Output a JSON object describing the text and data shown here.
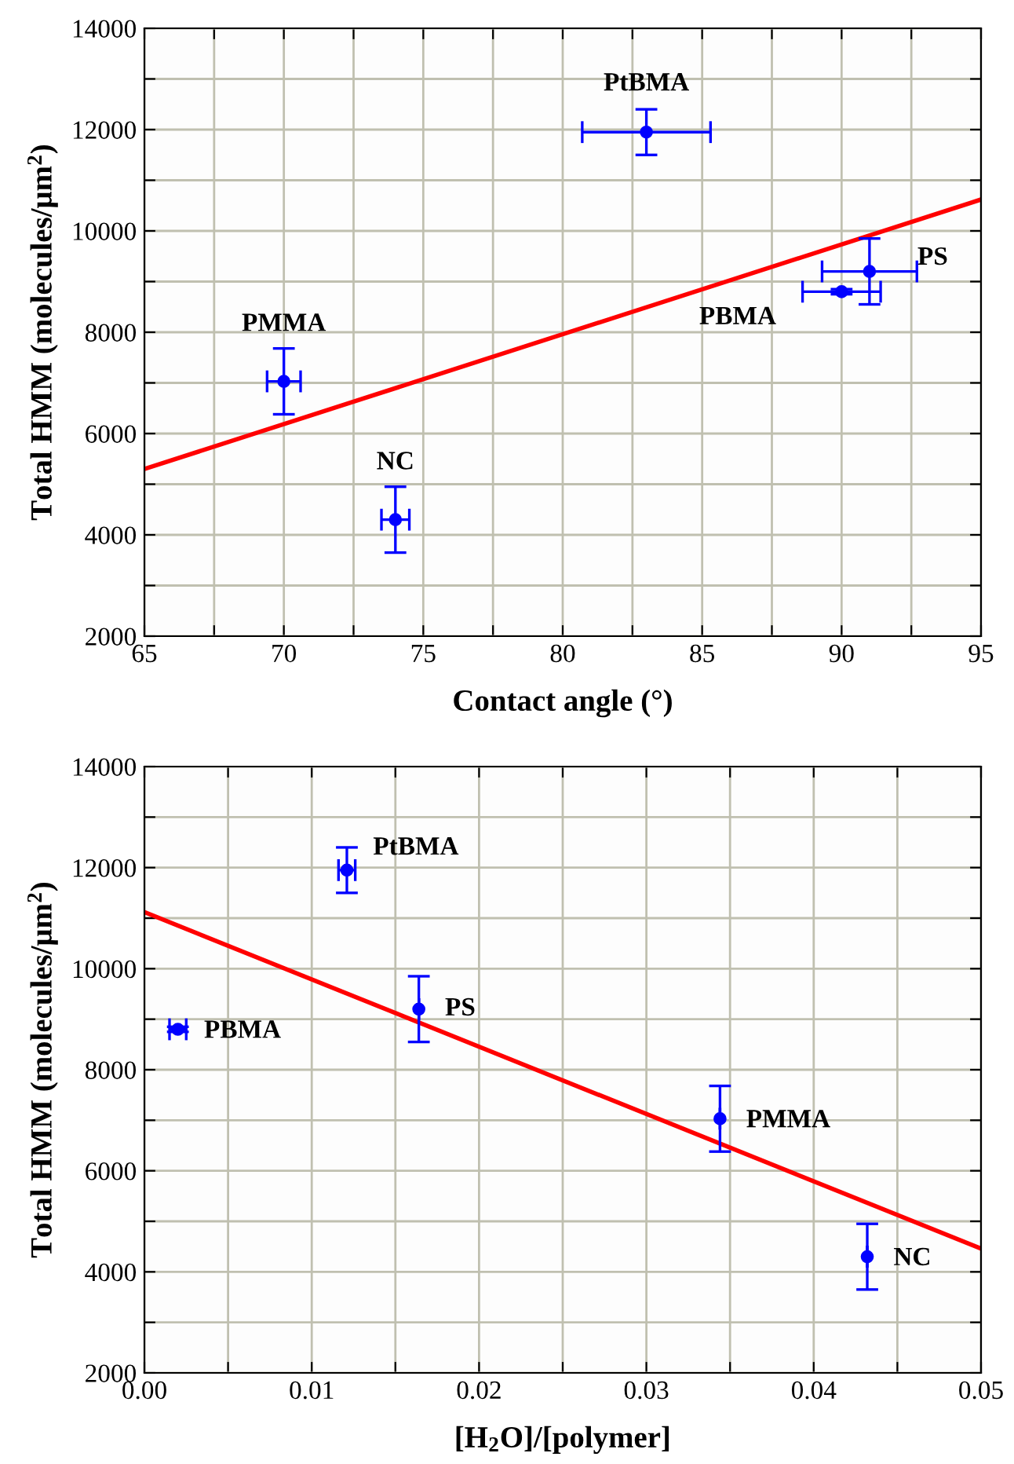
{
  "chart_data": [
    {
      "type": "scatter",
      "xlabel": "Contact angle (°)",
      "ylabel": "Total HMM (molecules/μm$^{2}$)",
      "xlim": [
        65,
        95
      ],
      "xticks": [
        65,
        {
          "value": 67.5,
          "label": null
        },
        70,
        {
          "value": 72.5,
          "label": null
        },
        75,
        {
          "value": 77.5,
          "label": null
        },
        80,
        {
          "value": 82.5,
          "label": null
        },
        85,
        {
          "value": 87.5,
          "label": null
        },
        90,
        {
          "value": 92.5,
          "label": null
        },
        95
      ],
      "ylim": [
        2000,
        14000
      ],
      "yticks": [
        2000,
        {
          "value": 3000,
          "label": null
        },
        4000,
        {
          "value": 5000,
          "label": null
        },
        6000,
        {
          "value": 7000,
          "label": null
        },
        8000,
        {
          "value": 9000,
          "label": null
        },
        10000,
        {
          "value": 11000,
          "label": null
        },
        12000,
        {
          "value": 13000,
          "label": null
        },
        14000
      ],
      "grid": true,
      "series": [
        {
          "marker": "circle",
          "color": "#0000ff",
          "x": [
            83,
            91,
            90,
            70,
            74
          ],
          "values": [
            11950,
            9200,
            8800,
            7030,
            4300
          ],
          "errors": [
            450,
            650,
            50,
            650,
            650
          ],
          "xerrors": [
            2.3,
            1.7,
            1.4,
            0.6,
            0.5
          ]
        },
        {
          "type": "line",
          "color": "#ff0000",
          "x": [
            65,
            95
          ],
          "values": [
            5300,
            10620
          ]
        }
      ],
      "annotations": [
        {
          "text": "PtBMA",
          "x": 83,
          "y": 11950
        },
        {
          "text": "PS",
          "x": 91,
          "y": 9200
        },
        {
          "text": "PBMA",
          "x": 90,
          "y": 8800
        },
        {
          "text": "PMMA",
          "x": 70,
          "y": 7030
        },
        {
          "text": "NC",
          "x": 74,
          "y": 4300
        }
      ]
    },
    {
      "type": "scatter",
      "xlabel": "[H$_{2}$O]/[polymer]",
      "ylabel": "Total HMM (molecules/μm$^{2}$)",
      "xlim": [
        0,
        0.05
      ],
      "xticks": [
        {
          "value": 0,
          "label": "0.00"
        },
        {
          "value": 0.005,
          "label": null
        },
        0.01,
        {
          "value": 0.015,
          "label": null
        },
        0.02,
        {
          "value": 0.025,
          "label": null
        },
        0.03,
        {
          "value": 0.035,
          "label": null
        },
        0.04,
        {
          "value": 0.045,
          "label": null
        },
        0.05
      ],
      "ylim": [
        2000,
        14000
      ],
      "yticks": [
        2000,
        {
          "value": 3000,
          "label": null
        },
        4000,
        {
          "value": 5000,
          "label": null
        },
        6000,
        {
          "value": 7000,
          "label": null
        },
        8000,
        {
          "value": 9000,
          "label": null
        },
        10000,
        {
          "value": 11000,
          "label": null
        },
        12000,
        {
          "value": 13000,
          "label": null
        },
        14000
      ],
      "grid": true,
      "series": [
        {
          "marker": "circle",
          "color": "#0000ff",
          "x": [
            0.0121,
            0.0164,
            0.002,
            0.0344,
            0.0432
          ],
          "values": [
            11950,
            9200,
            8800,
            7030,
            4300
          ],
          "errors": [
            450,
            650,
            50,
            650,
            650
          ],
          "xerrors": [
            0.0005,
            null,
            0.0005,
            null,
            null
          ]
        },
        {
          "type": "line",
          "color": "#ff0000",
          "x": [
            0,
            0.05
          ],
          "values": [
            11120,
            4460
          ]
        }
      ],
      "annotations": [
        {
          "text": "PtBMA",
          "x": 0.0121,
          "y": 11950
        },
        {
          "text": "PS",
          "x": 0.0164,
          "y": 9200
        },
        {
          "text": "PBMA",
          "x": 0.002,
          "y": 8800
        },
        {
          "text": "PMMA",
          "x": 0.0344,
          "y": 7030
        },
        {
          "text": "NC",
          "x": 0.0432,
          "y": 4300
        }
      ]
    }
  ]
}
